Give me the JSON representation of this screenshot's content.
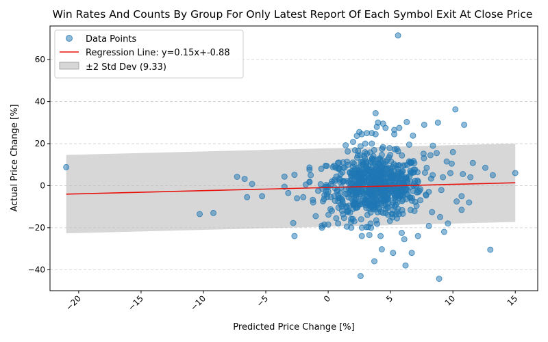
{
  "chart_data": {
    "type": "scatter",
    "title": "Win Rates And Counts By Group For Only Latest Report Of Each Symbol Exit At Close Price",
    "xlabel": "Predicted Price Change [%]",
    "ylabel": "Actual Price Change [%]",
    "xlim": [
      -22.3,
      16.8
    ],
    "ylim": [
      -50,
      76
    ],
    "xticks": [
      -20,
      -15,
      -10,
      -5,
      0,
      5,
      10,
      15
    ],
    "yticks": [
      -40,
      -20,
      0,
      20,
      40,
      60
    ],
    "grid": "y-dashed",
    "legend_position": "top-left",
    "legend": [
      "Data Points",
      "Regression Line: y=0.15x+-0.88",
      "±2 Std Dev (9.33)"
    ],
    "colors": {
      "points": "#1f77b4",
      "line": "#e8120c",
      "band": "#bdbdbd"
    },
    "regression": {
      "slope": 0.15,
      "intercept": -0.88,
      "x_range": [
        -21,
        15
      ]
    },
    "std_band": {
      "width": 18.66
    },
    "cluster": {
      "center": [
        3.8,
        0
      ],
      "x_spread": 1.9,
      "y_spread": 7.5,
      "count": 700
    },
    "points": [
      [
        -21.0,
        8.8
      ],
      [
        -10.3,
        -13.5
      ],
      [
        -9.2,
        -13.0
      ],
      [
        -7.3,
        4.2
      ],
      [
        -6.7,
        3.2
      ],
      [
        -6.5,
        -5.5
      ],
      [
        -6.1,
        0.8
      ],
      [
        -5.3,
        -5.0
      ],
      [
        -3.5,
        4.3
      ],
      [
        -3.5,
        -0.5
      ],
      [
        -3.2,
        -3.5
      ],
      [
        -2.8,
        -17.8
      ],
      [
        -2.7,
        -24.0
      ],
      [
        -2.7,
        5.2
      ],
      [
        -2.5,
        -6.0
      ],
      [
        -2.0,
        -5.5
      ],
      [
        -1.8,
        0.5
      ],
      [
        -1.4,
        5.0
      ],
      [
        -1.2,
        -8.0
      ],
      [
        -1.0,
        -14.5
      ],
      [
        -0.5,
        -20.0
      ],
      [
        -0.3,
        -18.5
      ],
      [
        -0.2,
        9.5
      ],
      [
        0.0,
        -18.5
      ],
      [
        0.3,
        -12.0
      ],
      [
        0.8,
        -18.0
      ],
      [
        1.2,
        -9.0
      ],
      [
        1.4,
        19.2
      ],
      [
        1.5,
        -19.5
      ],
      [
        2.0,
        20.8
      ],
      [
        2.1,
        -17.0
      ],
      [
        2.3,
        23.7
      ],
      [
        2.4,
        16.5
      ],
      [
        2.5,
        25.5
      ],
      [
        2.6,
        -43.0
      ],
      [
        2.7,
        24.5
      ],
      [
        2.7,
        -24.0
      ],
      [
        3.1,
        25.0
      ],
      [
        3.3,
        -23.5
      ],
      [
        3.4,
        -18.0
      ],
      [
        3.5,
        25.0
      ],
      [
        3.5,
        20.0
      ],
      [
        3.7,
        -36.0
      ],
      [
        3.8,
        34.5
      ],
      [
        3.8,
        24.5
      ],
      [
        3.9,
        28.0
      ],
      [
        4.0,
        30.0
      ],
      [
        4.2,
        -24.0
      ],
      [
        4.3,
        -30.3
      ],
      [
        4.4,
        29.5
      ],
      [
        4.6,
        27.5
      ],
      [
        5.2,
        -32.0
      ],
      [
        5.3,
        24.5
      ],
      [
        5.3,
        26.5
      ],
      [
        5.6,
        71.5
      ],
      [
        5.7,
        27.5
      ],
      [
        5.9,
        -22.5
      ],
      [
        6.1,
        -25.5
      ],
      [
        6.2,
        -38.0
      ],
      [
        6.3,
        30.3
      ],
      [
        6.5,
        19.5
      ],
      [
        6.7,
        -32.0
      ],
      [
        6.8,
        23.8
      ],
      [
        7.2,
        -24.0
      ],
      [
        7.7,
        29.0
      ],
      [
        8.8,
        30.0
      ],
      [
        8.9,
        -44.3
      ],
      [
        9.3,
        -22.0
      ],
      [
        9.6,
        -18.0
      ],
      [
        10.2,
        36.3
      ],
      [
        10.9,
        29.0
      ],
      [
        10.3,
        -7.5
      ],
      [
        10.0,
        16.0
      ],
      [
        11.3,
        -8.0
      ],
      [
        11.4,
        4.0
      ],
      [
        11.6,
        10.8
      ],
      [
        12.6,
        8.5
      ],
      [
        13.0,
        -30.5
      ],
      [
        13.2,
        5.0
      ],
      [
        15.0,
        6.0
      ],
      [
        10.8,
        5.5
      ],
      [
        10.7,
        -5.0
      ],
      [
        10.7,
        -11.5
      ],
      [
        9.9,
        10.5
      ],
      [
        9.5,
        11.5
      ],
      [
        9.2,
        4.0
      ],
      [
        8.7,
        15.5
      ],
      [
        8.4,
        19.0
      ],
      [
        8.2,
        14.5
      ],
      [
        7.9,
        8.5
      ],
      [
        1.0,
        5.5
      ],
      [
        0.5,
        -5.0
      ],
      [
        -0.8,
        -2.5
      ],
      [
        0.3,
        2.0
      ],
      [
        1.6,
        -12.0
      ],
      [
        0.9,
        3.5
      ]
    ]
  }
}
